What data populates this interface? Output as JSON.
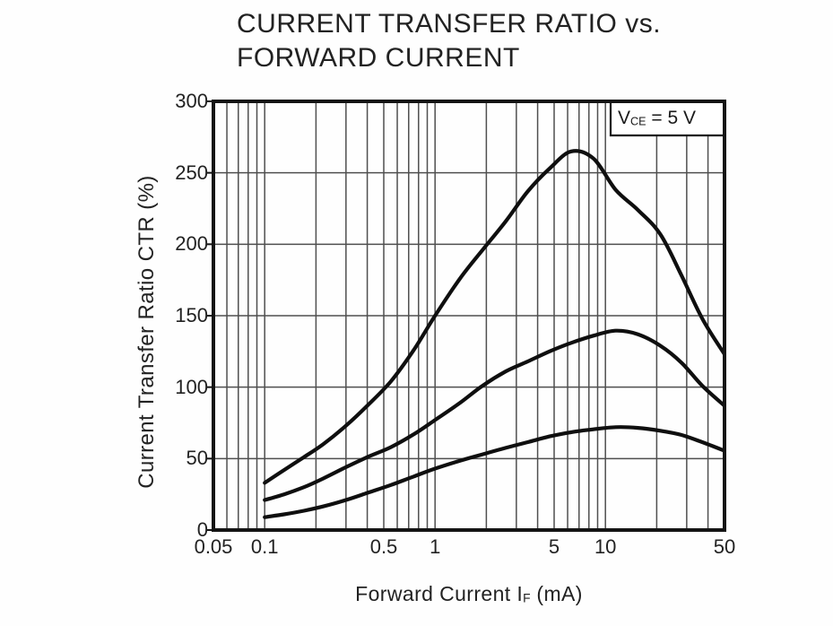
{
  "title": {
    "line1": "CURRENT TRANSFER RATIO vs.",
    "line2": "FORWARD CURRENT"
  },
  "y_axis": {
    "label": "Current Transfer Ratio  CTR (%)"
  },
  "x_axis": {
    "label_prefix": "Forward Current  I",
    "label_sub": "F",
    "label_suffix": " (mA)"
  },
  "annotation": {
    "prefix": "V",
    "sub": "CE",
    "suffix": " = 5 V",
    "full_text": "VCE = 5 V"
  },
  "colors": {
    "background": "#fefefe",
    "frame": "#141414",
    "grid": "#4f4f4f",
    "curve": "#0f0f0f",
    "text": "#222222"
  },
  "chart_data": {
    "type": "line",
    "title": "CURRENT TRANSFER RATIO vs. FORWARD CURRENT",
    "xlabel": "Forward Current IF (mA)",
    "ylabel": "Current Transfer Ratio CTR (%)",
    "annotation": "VCE = 5 V",
    "x_scale": "log",
    "xlim": [
      0.05,
      50
    ],
    "ylim": [
      0,
      300
    ],
    "grid": "on",
    "legend": "none",
    "x_ticks": [
      {
        "v": 0.05,
        "label": "0.05"
      },
      {
        "v": 0.1,
        "label": "0.1"
      },
      {
        "v": 0.5,
        "label": "0.5"
      },
      {
        "v": 1,
        "label": "1"
      },
      {
        "v": 5,
        "label": "5"
      },
      {
        "v": 10,
        "label": "10"
      },
      {
        "v": 50,
        "label": "50"
      }
    ],
    "y_ticks": [
      {
        "v": 0,
        "label": "0"
      },
      {
        "v": 50,
        "label": "50"
      },
      {
        "v": 100,
        "label": "100"
      },
      {
        "v": 150,
        "label": "150"
      },
      {
        "v": 200,
        "label": "200"
      },
      {
        "v": 250,
        "label": "250"
      },
      {
        "v": 300,
        "label": "300"
      }
    ],
    "x_gridlines": [
      0.06,
      0.07,
      0.08,
      0.09,
      0.1,
      0.2,
      0.3,
      0.4,
      0.5,
      0.6,
      0.7,
      0.8,
      0.9,
      1,
      2,
      3,
      4,
      5,
      6,
      7,
      8,
      9,
      10,
      20,
      30,
      40
    ],
    "y_gridlines": [
      50,
      100,
      150,
      200,
      250
    ],
    "series": [
      {
        "name": "upper-curve",
        "points": [
          [
            0.1,
            33
          ],
          [
            0.13,
            42
          ],
          [
            0.17,
            51
          ],
          [
            0.22,
            60
          ],
          [
            0.3,
            73
          ],
          [
            0.4,
            87
          ],
          [
            0.55,
            104
          ],
          [
            0.75,
            126
          ],
          [
            1,
            150
          ],
          [
            1.4,
            176
          ],
          [
            1.9,
            196
          ],
          [
            2.6,
            216
          ],
          [
            3.5,
            237
          ],
          [
            4.7,
            253
          ],
          [
            6.3,
            265
          ],
          [
            8.5,
            260
          ],
          [
            11.5,
            238
          ],
          [
            15.5,
            224
          ],
          [
            21,
            207
          ],
          [
            28,
            178
          ],
          [
            37,
            148
          ],
          [
            50,
            123
          ]
        ]
      },
      {
        "name": "middle-curve",
        "points": [
          [
            0.1,
            21
          ],
          [
            0.13,
            25
          ],
          [
            0.17,
            30
          ],
          [
            0.22,
            36
          ],
          [
            0.3,
            44
          ],
          [
            0.4,
            51
          ],
          [
            0.55,
            58
          ],
          [
            0.75,
            67
          ],
          [
            1,
            77
          ],
          [
            1.4,
            89
          ],
          [
            1.9,
            101
          ],
          [
            2.6,
            111
          ],
          [
            3.5,
            118
          ],
          [
            4.7,
            125
          ],
          [
            6.3,
            131
          ],
          [
            8.5,
            136
          ],
          [
            11.5,
            139.5
          ],
          [
            15.5,
            137
          ],
          [
            21,
            129
          ],
          [
            28,
            117
          ],
          [
            37,
            101
          ],
          [
            50,
            87
          ]
        ]
      },
      {
        "name": "lower-curve",
        "points": [
          [
            0.1,
            9
          ],
          [
            0.13,
            11
          ],
          [
            0.17,
            13.5
          ],
          [
            0.22,
            16.5
          ],
          [
            0.3,
            21
          ],
          [
            0.4,
            26
          ],
          [
            0.55,
            31.5
          ],
          [
            0.75,
            37.5
          ],
          [
            1,
            43
          ],
          [
            1.4,
            48.5
          ],
          [
            1.9,
            53
          ],
          [
            2.6,
            57.5
          ],
          [
            3.5,
            61.5
          ],
          [
            4.7,
            65.5
          ],
          [
            6.3,
            68.5
          ],
          [
            8.5,
            70.5
          ],
          [
            11.5,
            72
          ],
          [
            15.5,
            71.5
          ],
          [
            21,
            69.5
          ],
          [
            28,
            66.5
          ],
          [
            37,
            61.5
          ],
          [
            50,
            55.5
          ]
        ]
      }
    ]
  }
}
